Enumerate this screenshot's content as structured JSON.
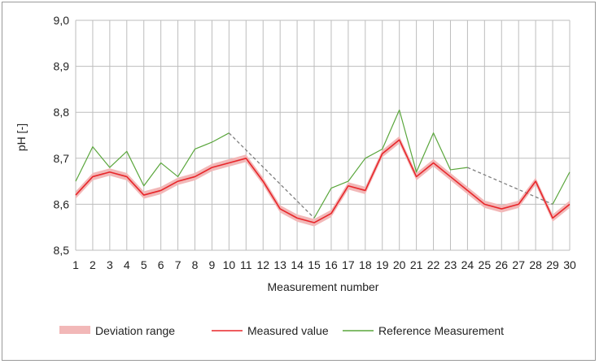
{
  "chart_data": {
    "type": "line",
    "title": "",
    "xlabel": "Measurement number",
    "ylabel": "pH [-]",
    "x": [
      1,
      2,
      3,
      4,
      5,
      6,
      7,
      8,
      9,
      10,
      11,
      12,
      13,
      14,
      15,
      16,
      17,
      18,
      19,
      20,
      21,
      22,
      23,
      24,
      25,
      26,
      27,
      28,
      29,
      30
    ],
    "ylim": [
      8.5,
      9.0
    ],
    "yticks": [
      "8,5",
      "8,6",
      "8,7",
      "8,8",
      "8,9",
      "9,0"
    ],
    "ytick_values": [
      8.5,
      8.6,
      8.7,
      8.8,
      8.9,
      9.0
    ],
    "grid": true,
    "legend_position": "bottom",
    "series": [
      {
        "name": "Deviation range",
        "kind": "band",
        "color": "#f2b8b8",
        "lower": [
          8.612,
          8.652,
          8.662,
          8.652,
          8.612,
          8.622,
          8.642,
          8.652,
          8.672,
          8.682,
          8.692,
          8.642,
          8.582,
          8.562,
          8.552,
          8.572,
          8.632,
          8.622,
          8.702,
          8.732,
          8.652,
          8.682,
          8.652,
          8.622,
          8.592,
          8.582,
          8.592,
          8.642,
          8.562,
          8.592
        ],
        "upper": [
          8.628,
          8.668,
          8.678,
          8.668,
          8.628,
          8.638,
          8.658,
          8.668,
          8.688,
          8.698,
          8.708,
          8.658,
          8.598,
          8.578,
          8.568,
          8.588,
          8.648,
          8.638,
          8.718,
          8.748,
          8.668,
          8.698,
          8.668,
          8.638,
          8.608,
          8.598,
          8.608,
          8.658,
          8.578,
          8.608
        ]
      },
      {
        "name": "Measured value",
        "kind": "line",
        "color": "#e8262a",
        "values": [
          8.62,
          8.66,
          8.67,
          8.66,
          8.62,
          8.63,
          8.65,
          8.66,
          8.68,
          8.69,
          8.7,
          8.65,
          8.59,
          8.57,
          8.56,
          8.58,
          8.64,
          8.63,
          8.71,
          8.74,
          8.66,
          8.69,
          8.66,
          8.63,
          8.6,
          8.59,
          8.6,
          8.65,
          8.57,
          8.6
        ]
      },
      {
        "name": "Reference Measurement",
        "kind": "line",
        "color": "#5aa63c",
        "values": [
          8.65,
          8.725,
          8.68,
          8.715,
          8.64,
          8.69,
          8.66,
          8.72,
          8.735,
          8.755,
          null,
          null,
          null,
          null,
          8.57,
          8.635,
          8.65,
          8.7,
          8.72,
          8.805,
          8.67,
          8.755,
          8.675,
          8.68,
          null,
          null,
          null,
          null,
          8.6,
          8.67
        ]
      },
      {
        "kind": "gap-connector",
        "color": "#7f7f7f",
        "segments": [
          [
            10,
            8.755,
            15,
            8.57
          ],
          [
            24,
            8.68,
            29,
            8.6
          ]
        ]
      }
    ]
  }
}
